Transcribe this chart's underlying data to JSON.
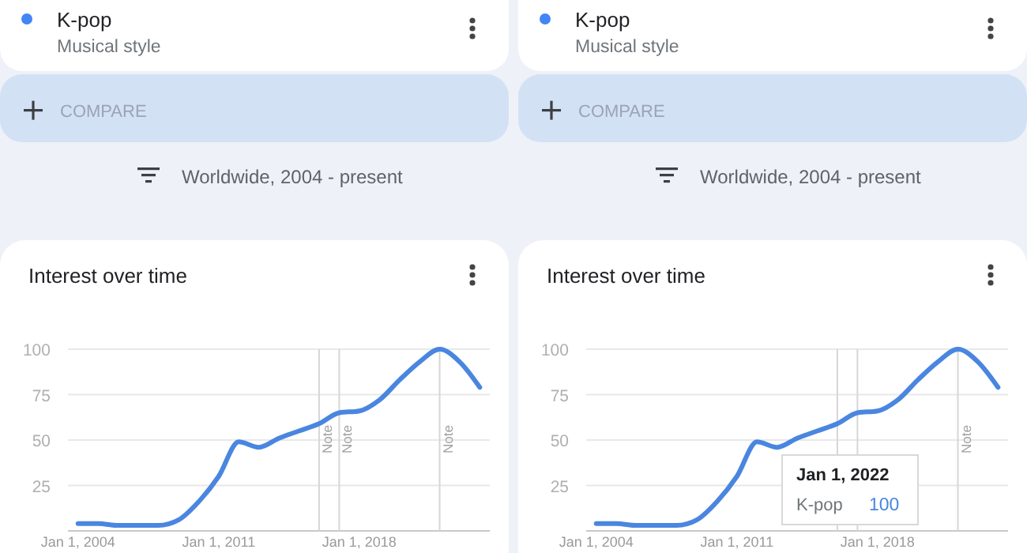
{
  "chart_data": [
    {
      "type": "other",
      "title": "K-pop",
      "subtitle": "Musical style",
      "annotations": [
        "COMPARE",
        "Worldwide, 2004 - present"
      ],
      "color": "#4285f4"
    },
    {
      "type": "other",
      "title": "K-pop",
      "subtitle": "Musical style",
      "annotations": [
        "COMPARE",
        "Worldwide, 2004 - present"
      ],
      "color": "#4285f4"
    },
    {
      "type": "line",
      "title": "Interest over time",
      "x": [
        "2004",
        "2005",
        "2006",
        "2007",
        "2008",
        "2009",
        "2010",
        "2011",
        "2012",
        "2013",
        "2014",
        "2015",
        "2016",
        "2017",
        "2018",
        "2019",
        "2020",
        "2021",
        "2022",
        "2023",
        "2024"
      ],
      "series": [
        {
          "color": "#4a86e0",
          "values": [
            4,
            4,
            3,
            3,
            3,
            6,
            16,
            30,
            49,
            46,
            51,
            55,
            59,
            65,
            66,
            72,
            83,
            93,
            100,
            93,
            79
          ]
        }
      ],
      "xlim": [
        "2003-07",
        "2024-07"
      ],
      "xticks": [
        {
          "value": "2004",
          "label": "Jan 1, 2004"
        },
        {
          "value": "2011",
          "label": "Jan 1, 2011"
        },
        {
          "value": "2018",
          "label": "Jan 1, 2018"
        }
      ],
      "ylim": [
        0,
        100
      ],
      "yticks": [
        25,
        50,
        75,
        100
      ],
      "grid": "y",
      "ref_lines": [
        {
          "axis": "x",
          "value": "2016",
          "label": "Note"
        },
        {
          "axis": "x",
          "value": "2017",
          "label": "Note"
        },
        {
          "axis": "x",
          "value": "2022",
          "label": "Note"
        }
      ]
    },
    {
      "type": "line",
      "title": "Interest over time",
      "x": [
        "2004",
        "2005",
        "2006",
        "2007",
        "2008",
        "2009",
        "2010",
        "2011",
        "2012",
        "2013",
        "2014",
        "2015",
        "2016",
        "2017",
        "2018",
        "2019",
        "2020",
        "2021",
        "2022",
        "2023",
        "2024"
      ],
      "series": [
        {
          "color": "#4a86e0",
          "values": [
            4,
            4,
            3,
            3,
            3,
            6,
            16,
            30,
            49,
            46,
            51,
            55,
            59,
            65,
            66,
            72,
            83,
            93,
            100,
            93,
            79
          ]
        }
      ],
      "xlim": [
        "2003-07",
        "2024-07"
      ],
      "xticks": [
        {
          "value": "2004",
          "label": "Jan 1, 2004"
        },
        {
          "value": "2011",
          "label": "Jan 1, 2011"
        },
        {
          "value": "2018",
          "label": "Jan 1, 2018"
        }
      ],
      "ylim": [
        0,
        100
      ],
      "yticks": [
        25,
        50,
        75,
        100
      ],
      "grid": "y",
      "ref_lines": [
        {
          "axis": "x",
          "value": "2016",
          "label": null
        },
        {
          "axis": "x",
          "value": "2017",
          "label": null
        },
        {
          "axis": "x",
          "value": "2022",
          "label": "Note"
        }
      ],
      "annotations": [
        "Jan 1, 2022",
        "K-pop",
        "100"
      ]
    }
  ]
}
